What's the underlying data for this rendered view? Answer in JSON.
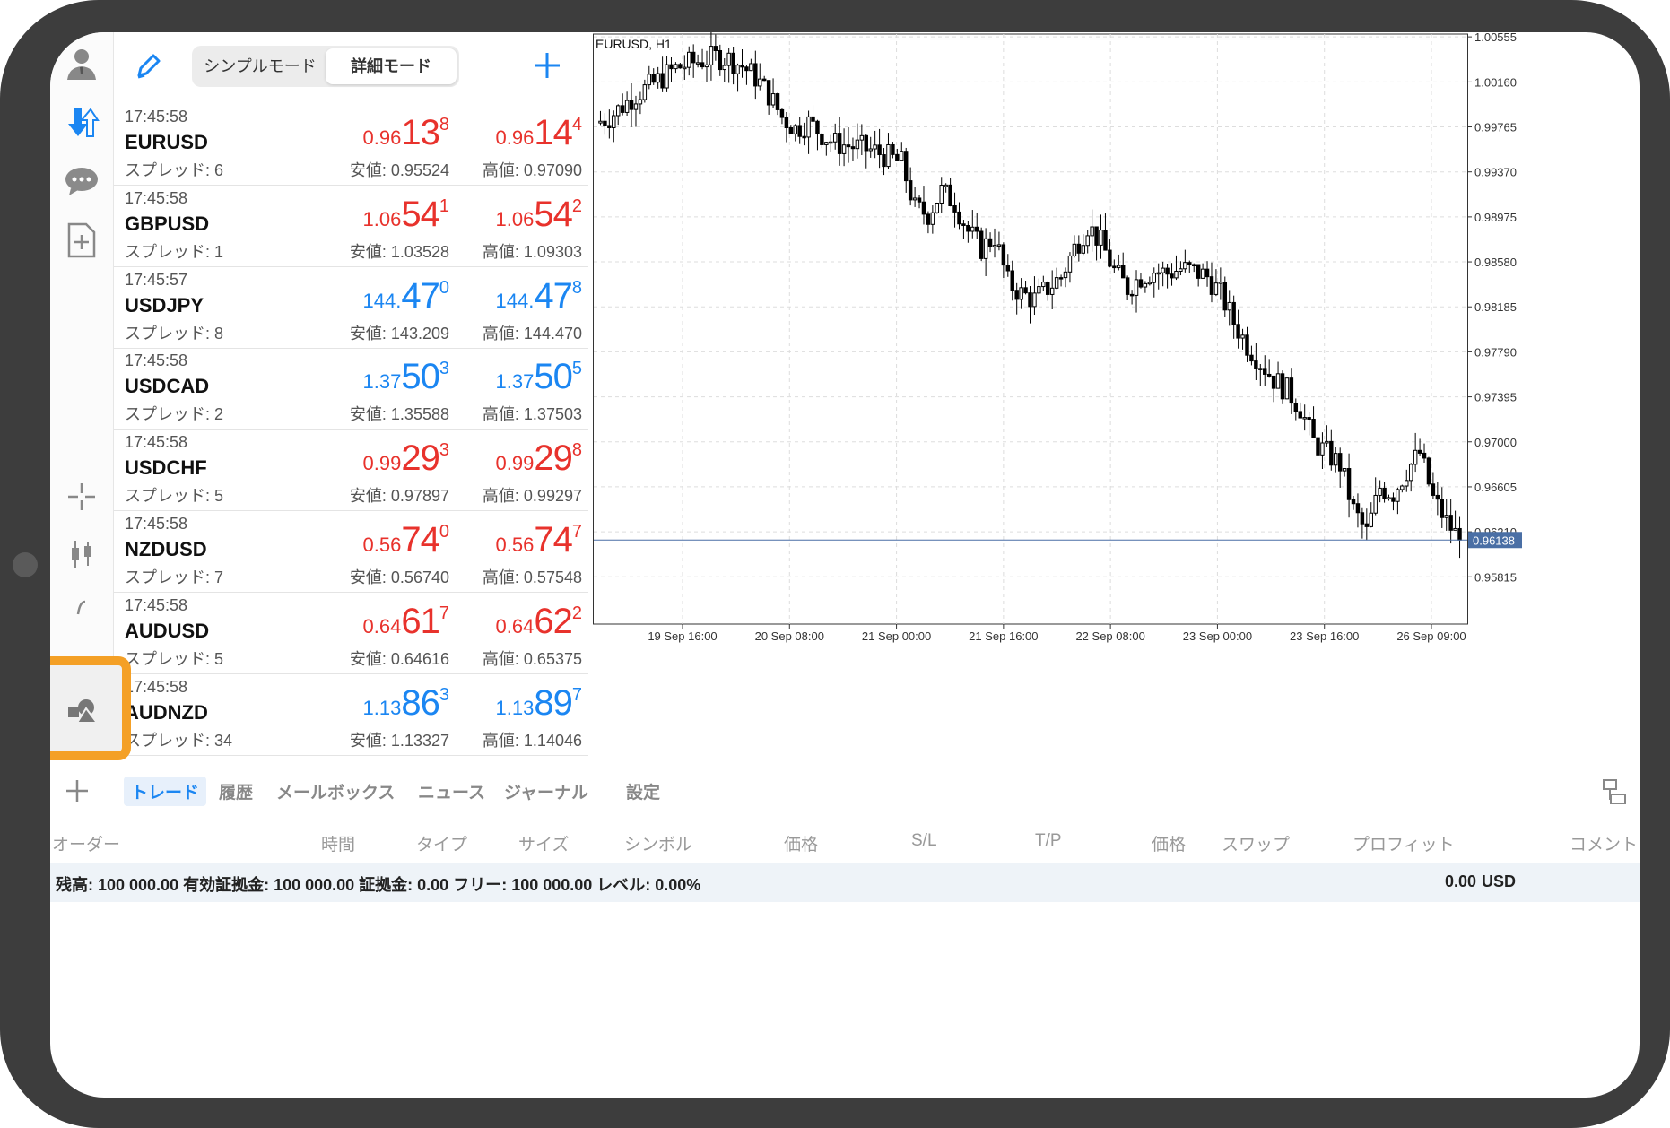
{
  "toolbar": {
    "mode_simple": "シンプルモード",
    "mode_detail": "詳細モード",
    "edit_icon": "pencil-icon",
    "add_icon": "plus-icon"
  },
  "ribbon": {
    "icons": [
      "avatar-icon",
      "trade-arrows-icon",
      "chat-icon",
      "new-order-icon",
      "crosshair-icon",
      "candle-type-icon",
      "indicator-icon",
      "objects-icon",
      "more-icon"
    ],
    "highlight_color": "#f4a026"
  },
  "quotes": [
    {
      "time": "17:45:58",
      "symbol": "EURUSD",
      "spread": "スプレッド: 6",
      "bid": {
        "pre": "0.96",
        "big": "13",
        "sup": "8"
      },
      "ask": {
        "pre": "0.96",
        "big": "14",
        "sup": "4"
      },
      "low": "安値: 0.95524",
      "high": "高値: 0.97090",
      "color": "red"
    },
    {
      "time": "17:45:58",
      "symbol": "GBPUSD",
      "spread": "スプレッド: 1",
      "bid": {
        "pre": "1.06",
        "big": "54",
        "sup": "1"
      },
      "ask": {
        "pre": "1.06",
        "big": "54",
        "sup": "2"
      },
      "low": "安値: 1.03528",
      "high": "高値: 1.09303",
      "color": "red"
    },
    {
      "time": "17:45:57",
      "symbol": "USDJPY",
      "spread": "スプレッド: 8",
      "bid": {
        "pre": "144.",
        "big": "47",
        "sup": "0"
      },
      "ask": {
        "pre": "144.",
        "big": "47",
        "sup": "8"
      },
      "low": "安値: 143.209",
      "high": "高値: 144.470",
      "color": "blue"
    },
    {
      "time": "17:45:58",
      "symbol": "USDCAD",
      "spread": "スプレッド: 2",
      "bid": {
        "pre": "1.37",
        "big": "50",
        "sup": "3"
      },
      "ask": {
        "pre": "1.37",
        "big": "50",
        "sup": "5"
      },
      "low": "安値: 1.35588",
      "high": "高値: 1.37503",
      "color": "blue"
    },
    {
      "time": "17:45:58",
      "symbol": "USDCHF",
      "spread": "スプレッド: 5",
      "bid": {
        "pre": "0.99",
        "big": "29",
        "sup": "3"
      },
      "ask": {
        "pre": "0.99",
        "big": "29",
        "sup": "8"
      },
      "low": "安値: 0.97897",
      "high": "高値: 0.99297",
      "color": "red"
    },
    {
      "time": "17:45:58",
      "symbol": "NZDUSD",
      "spread": "スプレッド: 7",
      "bid": {
        "pre": "0.56",
        "big": "74",
        "sup": "0"
      },
      "ask": {
        "pre": "0.56",
        "big": "74",
        "sup": "7"
      },
      "low": "安値: 0.56740",
      "high": "高値: 0.57548",
      "color": "red"
    },
    {
      "time": "17:45:58",
      "symbol": "AUDUSD",
      "spread": "スプレッド: 5",
      "bid": {
        "pre": "0.64",
        "big": "61",
        "sup": "7"
      },
      "ask": {
        "pre": "0.64",
        "big": "62",
        "sup": "2"
      },
      "low": "安値: 0.64616",
      "high": "高値: 0.65375",
      "color": "red"
    },
    {
      "time": "17:45:58",
      "symbol": "AUDNZD",
      "spread": "スプレッド: 34",
      "bid": {
        "pre": "1.13",
        "big": "86",
        "sup": "3"
      },
      "ask": {
        "pre": "1.13",
        "big": "89",
        "sup": "7"
      },
      "low": "安値: 1.13327",
      "high": "高値: 1.14046",
      "color": "blue"
    }
  ],
  "chart_data": {
    "type": "candlestick",
    "title": "EURUSD, H1",
    "y_ticks": [
      "1.00555",
      "1.00160",
      "0.99765",
      "0.99370",
      "0.98975",
      "0.98580",
      "0.98185",
      "0.97790",
      "0.97395",
      "0.97000",
      "0.96605",
      "0.96210",
      "0.95815"
    ],
    "ylim": [
      0.954,
      1.0058
    ],
    "x_ticks": [
      "19 Sep 16:00",
      "20 Sep 08:00",
      "21 Sep 00:00",
      "21 Sep 16:00",
      "22 Sep 08:00",
      "23 Sep 00:00",
      "23 Sep 16:00",
      "26 Sep 09:00"
    ],
    "current_price": "0.96138",
    "current_value": 0.96138,
    "close_path": [
      0.998,
      0.9985,
      0.9995,
      1.0005,
      1.0012,
      1.002,
      1.0028,
      1.0032,
      1.0035,
      1.0038,
      1.0036,
      1.003,
      1.002,
      1.0005,
      0.9985,
      0.9975,
      0.998,
      0.997,
      0.9962,
      0.996,
      0.9958,
      0.9955,
      0.995,
      0.9945,
      0.9905,
      0.99,
      0.992,
      0.991,
      0.9885,
      0.987,
      0.988,
      0.984,
      0.983,
      0.9825,
      0.9835,
      0.9845,
      0.987,
      0.989,
      0.9875,
      0.985,
      0.9835,
      0.9845,
      0.985,
      0.9848,
      0.9852,
      0.985,
      0.9845,
      0.983,
      0.9805,
      0.9785,
      0.977,
      0.9755,
      0.9745,
      0.973,
      0.97,
      0.969,
      0.968,
      0.964,
      0.962,
      0.966,
      0.9655,
      0.9675,
      0.969,
      0.965,
      0.963,
      0.9614
    ],
    "candle_color_up": "#ffffff",
    "candle_color_down": "#000000"
  },
  "tabs": [
    "トレード",
    "履歴",
    "メールボックス",
    "ニュース",
    "ジャーナル",
    "設定"
  ],
  "columns": [
    "オーダー",
    "時間",
    "タイプ",
    "サイズ",
    "シンボル",
    "価格",
    "S/L",
    "T/P",
    "価格",
    "スワップ",
    "プロフィット",
    "コメント"
  ],
  "balance": {
    "text": "残高: 100 000.00 有効証拠金: 100 000.00 証拠金: 0.00 フリー: 100 000.00 レベル: 0.00%",
    "value": "0.00",
    "currency": "USD"
  },
  "colors": {
    "accent": "#1b86f2",
    "bid_red": "#e8322c",
    "price_line": "#4a6fa5"
  }
}
